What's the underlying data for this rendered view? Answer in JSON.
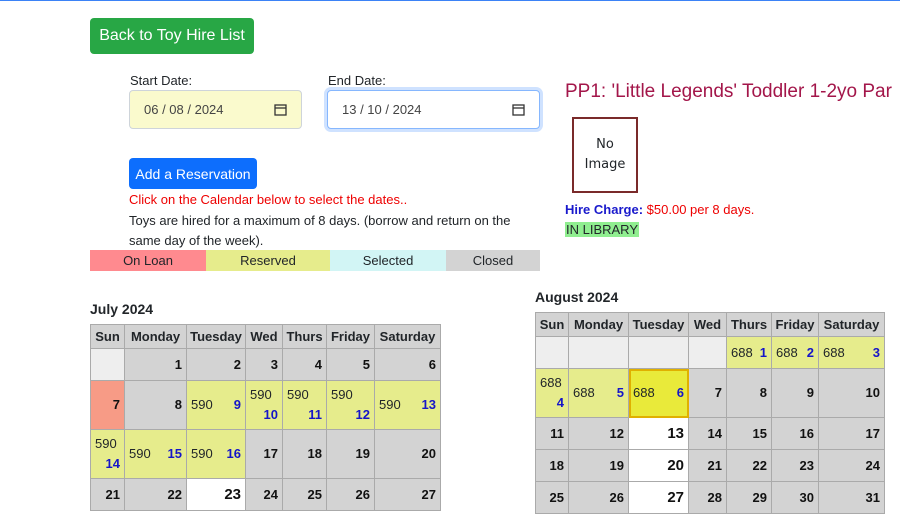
{
  "back_button": "Back to Toy Hire List",
  "start_date": {
    "label": "Start Date:",
    "value": "06 / 08 / 2024"
  },
  "end_date": {
    "label": "End Date:",
    "value": "13 / 10 / 2024"
  },
  "add_button": "Add a Reservation",
  "instruction": "Click on the Calendar below to select the dates..",
  "note": "Toys are hired for a maximum of 8 days. (borrow and return on the same day of the week).",
  "legend": [
    {
      "label": "On Loan",
      "color": "#ff8a8f"
    },
    {
      "label": "Reserved",
      "color": "#e6ec8c"
    },
    {
      "label": "Selected",
      "color": "#d2f5f5"
    },
    {
      "label": "Closed",
      "color": "#d3d3d3"
    }
  ],
  "toy": {
    "title": "PP1: 'Little Legends' Toddler 1-2yo Par",
    "image_placeholder": "No Image",
    "hire_charge_label": "Hire Charge:",
    "hire_charge_value": "$50.00 per 8 days.",
    "status": "IN LIBRARY"
  },
  "calendars": [
    {
      "title": "July 2024",
      "headers": [
        "Sun",
        "Monday",
        "Tuesday",
        "Wed",
        "Thurs",
        "Friday",
        "Saturday"
      ],
      "rows": [
        [
          {
            "color": "#eeeeee"
          },
          {
            "day": 1,
            "color": "#d3d3d3"
          },
          {
            "day": 2,
            "color": "#d3d3d3"
          },
          {
            "day": 3,
            "color": "#d3d3d3"
          },
          {
            "day": 4,
            "color": "#d3d3d3"
          },
          {
            "day": 5,
            "color": "#d3d3d3"
          },
          {
            "day": 6,
            "color": "#d3d3d3"
          }
        ],
        [
          {
            "day": 7,
            "color": "#f79b86"
          },
          {
            "day": 8,
            "color": "#d3d3d3"
          },
          {
            "res": 590,
            "day": 9,
            "color": "#e6ec8c"
          },
          {
            "res": 590,
            "day": 10,
            "color": "#e6ec8c"
          },
          {
            "res": 590,
            "day": 11,
            "color": "#e6ec8c"
          },
          {
            "res": 590,
            "day": 12,
            "color": "#e6ec8c"
          },
          {
            "res": 590,
            "day": 13,
            "color": "#e6ec8c"
          }
        ],
        [
          {
            "res": 590,
            "day": 14,
            "color": "#e6ec8c"
          },
          {
            "res": 590,
            "day": 15,
            "color": "#e6ec8c"
          },
          {
            "res": 590,
            "day": 16,
            "color": "#e6ec8c"
          },
          {
            "day": 17,
            "color": "#d3d3d3"
          },
          {
            "day": 18,
            "color": "#d3d3d3"
          },
          {
            "day": 19,
            "color": "#d3d3d3"
          },
          {
            "day": 20,
            "color": "#d3d3d3"
          }
        ],
        [
          {
            "day": 21,
            "color": "#d3d3d3"
          },
          {
            "day": 22,
            "color": "#d3d3d3"
          },
          {
            "day": 23,
            "color": "#ffffff"
          },
          {
            "day": 24,
            "color": "#d3d3d3"
          },
          {
            "day": 25,
            "color": "#d3d3d3"
          },
          {
            "day": 26,
            "color": "#d3d3d3"
          },
          {
            "day": 27,
            "color": "#d3d3d3"
          }
        ]
      ]
    },
    {
      "title": "August 2024",
      "headers": [
        "Sun",
        "Monday",
        "Tuesday",
        "Wed",
        "Thurs",
        "Friday",
        "Saturday"
      ],
      "rows": [
        [
          {
            "color": "#eeeeee"
          },
          {
            "color": "#eeeeee"
          },
          {
            "color": "#eeeeee"
          },
          {
            "color": "#eeeeee"
          },
          {
            "res": 688,
            "day": 1,
            "color": "#e6ec8c"
          },
          {
            "res": 688,
            "day": 2,
            "color": "#e6ec8c"
          },
          {
            "res": 688,
            "day": 3,
            "color": "#e6ec8c"
          }
        ],
        [
          {
            "res": 688,
            "day": 4,
            "color": "#e6ec8c"
          },
          {
            "res": 688,
            "day": 5,
            "color": "#e6ec8c"
          },
          {
            "res": 688,
            "day": 6,
            "color": "#e9ea3a"
          },
          {
            "day": 7,
            "color": "#d3d3d3"
          },
          {
            "day": 8,
            "color": "#d3d3d3"
          },
          {
            "day": 9,
            "color": "#d3d3d3"
          },
          {
            "day": 10,
            "color": "#d3d3d3"
          }
        ],
        [
          {
            "day": 11,
            "color": "#d3d3d3"
          },
          {
            "day": 12,
            "color": "#d3d3d3"
          },
          {
            "day": 13,
            "color": "#ffffff"
          },
          {
            "day": 14,
            "color": "#d3d3d3"
          },
          {
            "day": 15,
            "color": "#d3d3d3"
          },
          {
            "day": 16,
            "color": "#d3d3d3"
          },
          {
            "day": 17,
            "color": "#d3d3d3"
          }
        ],
        [
          {
            "day": 18,
            "color": "#d3d3d3"
          },
          {
            "day": 19,
            "color": "#d3d3d3"
          },
          {
            "day": 20,
            "color": "#ffffff"
          },
          {
            "day": 21,
            "color": "#d3d3d3"
          },
          {
            "day": 22,
            "color": "#d3d3d3"
          },
          {
            "day": 23,
            "color": "#d3d3d3"
          },
          {
            "day": 24,
            "color": "#d3d3d3"
          }
        ],
        [
          {
            "day": 25,
            "color": "#d3d3d3"
          },
          {
            "day": 26,
            "color": "#d3d3d3"
          },
          {
            "day": 27,
            "color": "#ffffff"
          },
          {
            "day": 28,
            "color": "#d3d3d3"
          },
          {
            "day": 29,
            "color": "#d3d3d3"
          },
          {
            "day": 30,
            "color": "#d3d3d3"
          },
          {
            "day": 31,
            "color": "#d3d3d3"
          }
        ]
      ]
    }
  ]
}
